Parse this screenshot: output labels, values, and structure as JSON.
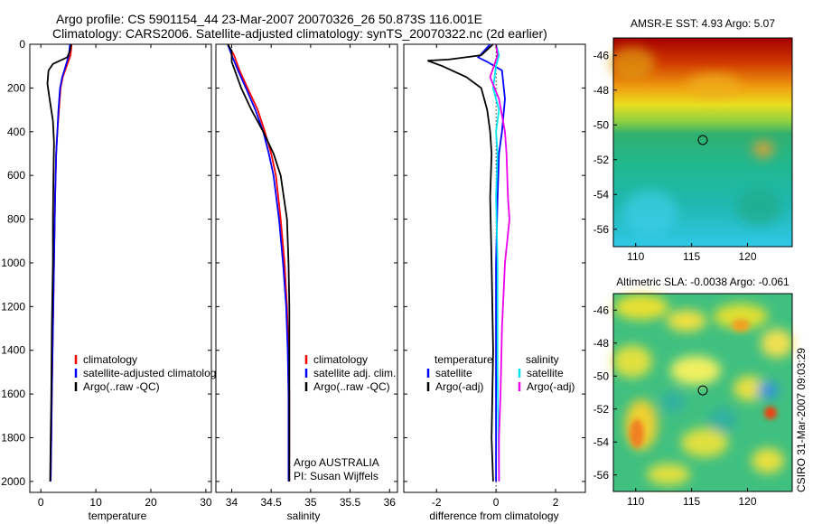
{
  "title_line1": "Argo profile: CS 5901154_44 23-Mar-2007 20070326_26 50.873S 116.001E",
  "title_line2": "Climatology: CARS2006. Satellite-adjusted climatology: synTS_20070322.nc (2d earlier)",
  "side_label": "CSIRO 31-Mar-2007 09:03:29",
  "chart_data": [
    {
      "type": "line",
      "id": "temperature",
      "xlabel": "temperature",
      "xlim": [
        -2,
        31
      ],
      "ylim": [
        0,
        2050
      ],
      "xticks": [
        "0",
        "10",
        "20",
        "30"
      ],
      "yticks": [
        "0",
        "200",
        "400",
        "600",
        "800",
        "1000",
        "1200",
        "1400",
        "1600",
        "1800",
        "2000"
      ],
      "legend": [
        "climatology",
        "satellite-adjusted climatology",
        "Argo(..raw -QC)"
      ],
      "series": [
        {
          "name": "climatology",
          "color": "#ff0000",
          "points": [
            [
              5.6,
              0
            ],
            [
              5.4,
              50
            ],
            [
              4.7,
              100
            ],
            [
              4,
              150
            ],
            [
              3.6,
              200
            ],
            [
              3.3,
              300
            ],
            [
              3.0,
              400
            ],
            [
              2.8,
              500
            ],
            [
              2.6,
              700
            ],
            [
              2.4,
              1000
            ],
            [
              2.2,
              1300
            ],
            [
              2.0,
              1600
            ],
            [
              1.9,
              1800
            ],
            [
              1.8,
              2000
            ]
          ]
        },
        {
          "name": "satellite-adjusted climatology",
          "color": "#0000ff",
          "points": [
            [
              5.3,
              0
            ],
            [
              5.1,
              50
            ],
            [
              4.5,
              100
            ],
            [
              3.9,
              150
            ],
            [
              3.5,
              200
            ],
            [
              3.2,
              300
            ],
            [
              3.0,
              400
            ],
            [
              2.8,
              500
            ],
            [
              2.6,
              700
            ],
            [
              2.4,
              1000
            ],
            [
              2.2,
              1300
            ],
            [
              2.0,
              1600
            ],
            [
              1.9,
              1800
            ],
            [
              1.8,
              2000
            ]
          ]
        },
        {
          "name": "Argo(..raw -QC)",
          "color": "#000000",
          "points": [
            [
              5.5,
              0
            ],
            [
              5.3,
              30
            ],
            [
              4.8,
              60
            ],
            [
              3.5,
              75
            ],
            [
              2.2,
              90
            ],
            [
              1.4,
              120
            ],
            [
              1.2,
              180
            ],
            [
              1.6,
              250
            ],
            [
              2.2,
              350
            ],
            [
              2.4,
              450
            ],
            [
              2.3,
              600
            ],
            [
              2.2,
              800
            ],
            [
              2.2,
              1000
            ],
            [
              2.0,
              1300
            ],
            [
              1.9,
              1600
            ],
            [
              1.8,
              1800
            ],
            [
              1.7,
              2000
            ]
          ]
        }
      ]
    },
    {
      "type": "line",
      "id": "salinity",
      "xlabel": "salinity",
      "xlim": [
        33.8,
        36.1
      ],
      "ylim": [
        0,
        2050
      ],
      "xticks": [
        "34",
        "34.5",
        "35",
        "35.5",
        "36"
      ],
      "legend": [
        "climatology",
        "satellite adj. clim.",
        "Argo(..raw -QC)"
      ],
      "annotation": [
        "Argo AUSTRALIA",
        "PI: Susan Wijffels"
      ],
      "series": [
        {
          "name": "climatology",
          "color": "#ff0000",
          "points": [
            [
              33.95,
              0
            ],
            [
              34.03,
              50
            ],
            [
              34.1,
              120
            ],
            [
              34.2,
              200
            ],
            [
              34.33,
              300
            ],
            [
              34.42,
              400
            ],
            [
              34.5,
              500
            ],
            [
              34.56,
              600
            ],
            [
              34.62,
              800
            ],
            [
              34.67,
              1000
            ],
            [
              34.7,
              1200
            ],
            [
              34.72,
              1400
            ],
            [
              34.73,
              1600
            ],
            [
              34.73,
              1800
            ],
            [
              34.73,
              2000
            ]
          ]
        },
        {
          "name": "satellite adj. clim.",
          "color": "#0000ff",
          "points": [
            [
              33.95,
              0
            ],
            [
              34.0,
              50
            ],
            [
              34.08,
              120
            ],
            [
              34.18,
              200
            ],
            [
              34.3,
              300
            ],
            [
              34.4,
              400
            ],
            [
              34.47,
              500
            ],
            [
              34.53,
              600
            ],
            [
              34.6,
              800
            ],
            [
              34.65,
              1000
            ],
            [
              34.69,
              1200
            ],
            [
              34.71,
              1400
            ],
            [
              34.72,
              1600
            ],
            [
              34.72,
              1800
            ],
            [
              34.72,
              2000
            ]
          ]
        },
        {
          "name": "Argo(..raw -QC)",
          "color": "#000000",
          "points": [
            [
              33.95,
              0
            ],
            [
              34.0,
              30
            ],
            [
              34.0,
              80
            ],
            [
              34.12,
              200
            ],
            [
              34.25,
              300
            ],
            [
              34.4,
              400
            ],
            [
              34.53,
              500
            ],
            [
              34.62,
              600
            ],
            [
              34.7,
              800
            ],
            [
              34.72,
              1000
            ],
            [
              34.73,
              1200
            ],
            [
              34.73,
              1400
            ],
            [
              34.73,
              1600
            ],
            [
              34.73,
              1800
            ],
            [
              34.73,
              2000
            ]
          ]
        }
      ]
    },
    {
      "type": "line",
      "id": "difference",
      "xlabel": "difference from climatology",
      "xlim": [
        -3.1,
        3.0
      ],
      "ylim": [
        0,
        2050
      ],
      "xticks": [
        "-2",
        "0",
        "2"
      ],
      "legend_temperature": {
        "header": "temperature",
        "entries": [
          "satellite",
          "Argo(-adj)"
        ]
      },
      "legend_salinity": {
        "header": "salinity",
        "entries": [
          "satellite",
          "Argo(-adj)"
        ]
      },
      "series": [
        {
          "name": "temperature satellite",
          "color": "#0000ff",
          "points": [
            [
              -0.2,
              0
            ],
            [
              -0.6,
              60
            ],
            [
              -0.3,
              80
            ],
            [
              0.2,
              120
            ],
            [
              0.3,
              250
            ],
            [
              0.2,
              400
            ],
            [
              0.1,
              500
            ],
            [
              0.05,
              700
            ],
            [
              0,
              1000
            ],
            [
              0,
              1500
            ],
            [
              0,
              2000
            ]
          ]
        },
        {
          "name": "temperature Argo(-adj)",
          "color": "#000000",
          "points": [
            [
              -0.1,
              0
            ],
            [
              -0.5,
              50
            ],
            [
              -1.6,
              70
            ],
            [
              -2.3,
              75
            ],
            [
              -1.8,
              100
            ],
            [
              -1.0,
              150
            ],
            [
              -0.5,
              200
            ],
            [
              -0.3,
              300
            ],
            [
              -0.2,
              400
            ],
            [
              -0.15,
              500
            ],
            [
              -0.2,
              700
            ],
            [
              -0.15,
              1000
            ],
            [
              -0.1,
              1400
            ],
            [
              -0.15,
              1800
            ],
            [
              -0.1,
              2000
            ]
          ]
        },
        {
          "name": "salinity satellite",
          "color": "#00e5ee",
          "points": [
            [
              0.0,
              0
            ],
            [
              0.1,
              50
            ],
            [
              0.0,
              100
            ],
            [
              -0.1,
              200
            ],
            [
              0.1,
              300
            ],
            [
              0.0,
              400
            ],
            [
              0.05,
              500
            ],
            [
              0.0,
              700
            ],
            [
              0.05,
              1000
            ],
            [
              0.05,
              1500
            ],
            [
              0.1,
              2000
            ]
          ]
        },
        {
          "name": "salinity Argo(-adj)",
          "color": "#ee00ee",
          "points": [
            [
              0.0,
              0
            ],
            [
              0.05,
              50
            ],
            [
              -0.2,
              150
            ],
            [
              0.1,
              250
            ],
            [
              0.3,
              400
            ],
            [
              0.35,
              500
            ],
            [
              0.4,
              700
            ],
            [
              0.45,
              800
            ],
            [
              0.3,
              1000
            ],
            [
              0.2,
              1300
            ],
            [
              0.15,
              1600
            ],
            [
              0.1,
              1800
            ],
            [
              0.1,
              2000
            ]
          ]
        }
      ]
    },
    {
      "type": "heatmap",
      "id": "sst",
      "title": "AMSR-E SST: 4.93 Argo: 5.07",
      "xlim": [
        108,
        124
      ],
      "ylim": [
        -57,
        -45
      ],
      "xticks": [
        "110",
        "115",
        "120"
      ],
      "yticks": [
        "-46",
        "-48",
        "-50",
        "-52",
        "-54",
        "-56"
      ],
      "marker": [
        116.0,
        -50.87
      ]
    },
    {
      "type": "heatmap",
      "id": "sla",
      "title": "Altimetric SLA: -0.0038 Argo: -0.061",
      "xlim": [
        108,
        124
      ],
      "ylim": [
        -57,
        -45
      ],
      "xticks": [
        "110",
        "115",
        "120"
      ],
      "yticks": [
        "-46",
        "-48",
        "-50",
        "-52",
        "-54",
        "-56"
      ],
      "marker": [
        116.0,
        -50.87
      ]
    }
  ]
}
